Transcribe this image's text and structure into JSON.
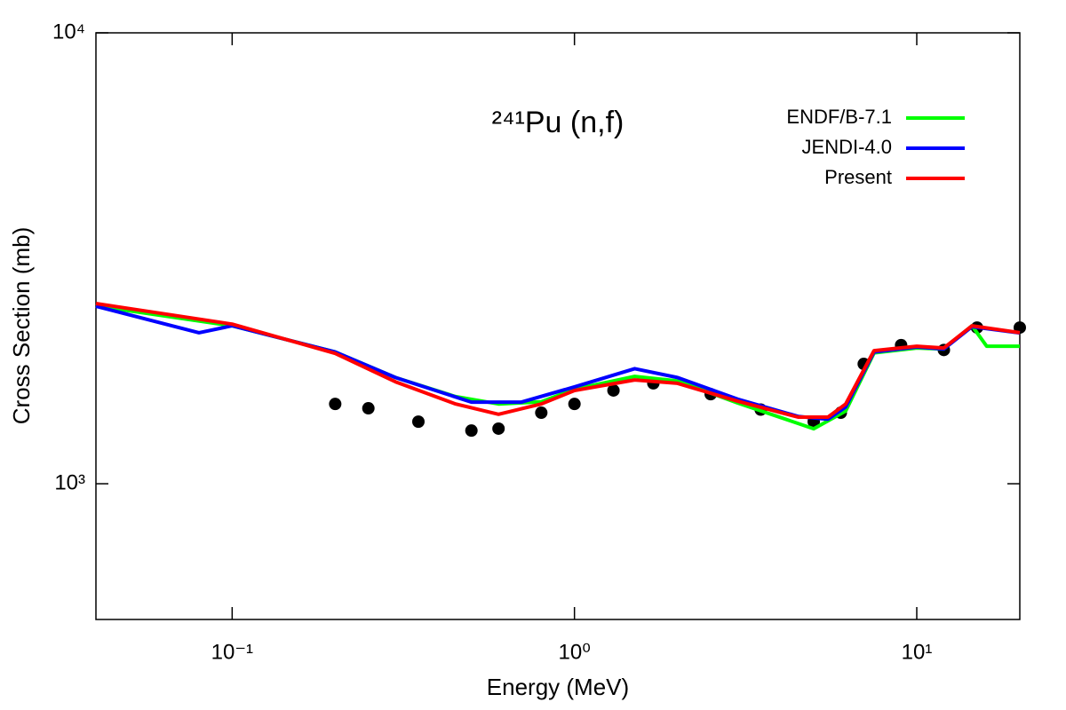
{
  "chart_data": {
    "type": "line",
    "title": "²⁴¹Pu (n,f)",
    "x_label": "Energy (MeV)",
    "y_label": "Cross Section (mb)",
    "log_x": true,
    "log_y": true,
    "legend": "upper right",
    "xlim": [
      0.04,
      20
    ],
    "ylim": [
      500,
      10000
    ],
    "xticks": [
      {
        "value": 0.1,
        "label": "10⁻¹"
      },
      {
        "value": 1,
        "label": "10⁰"
      },
      {
        "value": 10,
        "label": "10¹"
      }
    ],
    "yticks": [
      {
        "value": 1000,
        "label": "10³"
      },
      {
        "value": 10000,
        "label": "10⁴"
      }
    ],
    "series": [
      {
        "color": "#000000",
        "style": "points",
        "x": [
          0.2,
          0.25,
          0.35,
          0.5,
          0.6,
          0.8,
          1.0,
          1.3,
          1.7,
          2.5,
          3.5,
          5,
          6,
          7,
          9,
          12,
          15,
          20
        ],
        "values": [
          1503,
          1470,
          1373,
          1312,
          1325,
          1437,
          1503,
          1610,
          1670,
          1580,
          1460,
          1373,
          1437,
          1844,
          2030,
          1980,
          2220,
          2220
        ]
      },
      {
        "name": "ENDF/B-7.1",
        "color": "#00ff00",
        "style": "line",
        "x": [
          0.04,
          0.1,
          0.2,
          0.3,
          0.45,
          0.6,
          0.8,
          1.0,
          1.5,
          2.0,
          3.0,
          5.0,
          6.2,
          7.5,
          10,
          12,
          14.5,
          16,
          20
        ],
        "values": [
          2480,
          2240,
          1960,
          1720,
          1560,
          1503,
          1520,
          1620,
          1730,
          1690,
          1510,
          1324,
          1450,
          1950,
          2000,
          1990,
          2240,
          2018,
          2018
        ]
      },
      {
        "name": "JENDI-4.0",
        "color": "#0000ff",
        "style": "line",
        "x": [
          0.04,
          0.08,
          0.1,
          0.2,
          0.3,
          0.5,
          0.7,
          1.0,
          1.5,
          2.0,
          3.0,
          4.5,
          5.5,
          6.2,
          7.5,
          10,
          12,
          14.5,
          20
        ],
        "values": [
          2475,
          2162,
          2240,
          1960,
          1720,
          1517,
          1517,
          1640,
          1800,
          1720,
          1540,
          1410,
          1390,
          1480,
          1960,
          2010,
          1990,
          2230,
          2160
        ]
      },
      {
        "name": "Present",
        "color": "#ff0000",
        "style": "line",
        "x": [
          0.04,
          0.1,
          0.2,
          0.3,
          0.45,
          0.6,
          0.8,
          1.0,
          1.5,
          2.0,
          3.0,
          4.5,
          5.5,
          6.2,
          7.5,
          10,
          12,
          14.5,
          20
        ],
        "values": [
          2510,
          2260,
          1946,
          1683,
          1503,
          1426,
          1503,
          1610,
          1699,
          1670,
          1524,
          1405,
          1405,
          1503,
          1973,
          2018,
          2000,
          2240,
          2163
        ]
      }
    ]
  }
}
